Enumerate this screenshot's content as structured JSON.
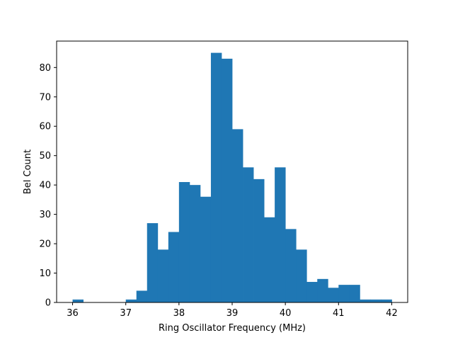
{
  "chart_data": {
    "type": "bar",
    "subtype": "histogram",
    "xlabel": "Ring Oscillator Frequency (MHz)",
    "ylabel": "Bel Count",
    "xlim": [
      35.7,
      42.3
    ],
    "ylim": [
      0,
      89
    ],
    "x_ticks": [
      36,
      37,
      38,
      39,
      40,
      41,
      42
    ],
    "x_tick_labels": [
      "36",
      "37",
      "38",
      "39",
      "40",
      "41",
      "42"
    ],
    "y_ticks": [
      0,
      10,
      20,
      30,
      40,
      50,
      60,
      70,
      80
    ],
    "y_tick_labels": [
      "0",
      "10",
      "20",
      "30",
      "40",
      "50",
      "60",
      "70",
      "80"
    ],
    "bar_color": "#1f77b4",
    "grid": false,
    "bin_edges": [
      36.0,
      36.2,
      36.4,
      36.6,
      36.8,
      37.0,
      37.2,
      37.4,
      37.6,
      37.8,
      38.0,
      38.2,
      38.4,
      38.6,
      38.8,
      39.0,
      39.2,
      39.4,
      39.6,
      39.8,
      40.0,
      40.2,
      40.4,
      40.6,
      40.8,
      41.0,
      41.2,
      41.4,
      41.6,
      41.8,
      42.0
    ],
    "values": [
      1,
      0,
      0,
      0,
      0,
      1,
      4,
      27,
      18,
      24,
      41,
      40,
      36,
      85,
      83,
      59,
      46,
      42,
      29,
      46,
      25,
      18,
      7,
      8,
      5,
      6,
      6,
      1,
      1,
      1
    ]
  }
}
